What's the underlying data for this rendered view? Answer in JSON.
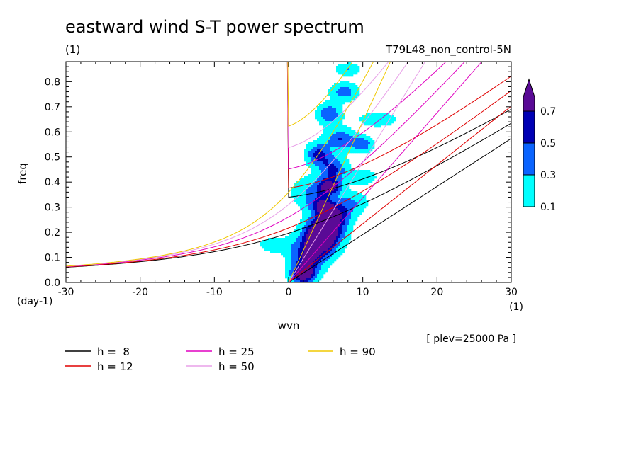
{
  "chart_data": {
    "type": "heatmap",
    "title": "eastward wind S-T power spectrum",
    "subtitle_left": "(1)",
    "subtitle_right": "T79L48_non_control-5N",
    "xlabel": "wvn",
    "ylabel": "freq",
    "x_unit": "(1)",
    "y_unit": "(day-1)",
    "note": "[ plev=25000 Pa ]",
    "xlim": [
      -30,
      30
    ],
    "ylim": [
      0,
      0.88
    ],
    "x_ticks": [
      -30,
      -20,
      -10,
      0,
      10,
      20,
      30
    ],
    "y_ticks": [
      0.0,
      0.1,
      0.2,
      0.3,
      0.4,
      0.5,
      0.6,
      0.7,
      0.8
    ],
    "x_tick_labels": [
      "-30",
      "-20",
      "-10",
      "0",
      "10",
      "20",
      "30"
    ],
    "y_tick_labels": [
      "0.0",
      "0.1",
      "0.2",
      "0.3",
      "0.4",
      "0.5",
      "0.6",
      "0.7",
      "0.8"
    ],
    "grid": false,
    "colorbar": {
      "levels": [
        0.1,
        0.3,
        0.5,
        0.7
      ],
      "labels": [
        "0.1",
        "0.3",
        "0.5",
        "0.7"
      ],
      "colors": [
        "#00ffff",
        "#0a64ff",
        "#0000b4",
        "#5a0a96"
      ]
    },
    "legend_position": "bottom-left",
    "series": [
      {
        "name": "h =  8",
        "h": 8,
        "color": "#000000"
      },
      {
        "name": "h = 12",
        "h": 12,
        "color": "#e00000"
      },
      {
        "name": "h = 25",
        "h": 25,
        "color": "#e000c0"
      },
      {
        "name": "h = 50",
        "h": 50,
        "color": "#e8a0e8"
      },
      {
        "name": "h = 90",
        "h": 90,
        "color": "#f0c800"
      }
    ],
    "spectral_blobs": [
      {
        "k": 2.0,
        "f": 0.03,
        "w": 1.6,
        "h": 0.035,
        "peak": 0.9
      },
      {
        "k": 2.5,
        "f": 0.09,
        "w": 2.2,
        "h": 0.05,
        "peak": 0.6
      },
      {
        "k": 4.0,
        "f": 0.16,
        "w": 2.5,
        "h": 0.06,
        "peak": 0.85
      },
      {
        "k": 5.0,
        "f": 0.21,
        "w": 2.2,
        "h": 0.05,
        "peak": 0.9
      },
      {
        "k": 6.0,
        "f": 0.27,
        "w": 2.2,
        "h": 0.045,
        "peak": 0.75
      },
      {
        "k": 4.5,
        "f": 0.31,
        "w": 1.6,
        "h": 0.035,
        "peak": 0.55
      },
      {
        "k": 5.5,
        "f": 0.38,
        "w": 1.5,
        "h": 0.03,
        "peak": 0.8
      },
      {
        "k": 6.0,
        "f": 0.45,
        "w": 1.8,
        "h": 0.05,
        "peak": 0.55
      },
      {
        "k": 4.0,
        "f": 0.51,
        "w": 1.5,
        "h": 0.04,
        "peak": 0.6
      },
      {
        "k": 7.0,
        "f": 0.57,
        "w": 2.0,
        "h": 0.04,
        "peak": 0.5
      },
      {
        "k": 5.5,
        "f": 0.67,
        "w": 1.5,
        "h": 0.04,
        "peak": 0.5
      },
      {
        "k": 7.5,
        "f": 0.76,
        "w": 1.8,
        "h": 0.035,
        "peak": 0.4
      },
      {
        "k": 10.0,
        "f": 0.55,
        "w": 1.3,
        "h": 0.03,
        "peak": 0.45
      },
      {
        "k": 8.0,
        "f": 0.85,
        "w": 1.5,
        "h": 0.025,
        "peak": 0.3
      },
      {
        "k": 12.0,
        "f": 0.65,
        "w": 2.5,
        "h": 0.03,
        "peak": 0.25
      },
      {
        "k": -1.5,
        "f": 0.15,
        "w": 2.5,
        "h": 0.03,
        "peak": 0.25
      },
      {
        "k": 10.0,
        "f": 0.42,
        "w": 1.8,
        "h": 0.03,
        "peak": 0.25
      },
      {
        "k": 3.0,
        "f": 0.36,
        "w": 2.5,
        "h": 0.06,
        "peak": 0.3
      },
      {
        "k": 8.5,
        "f": 0.32,
        "w": 2.0,
        "h": 0.04,
        "peak": 0.3
      }
    ]
  }
}
